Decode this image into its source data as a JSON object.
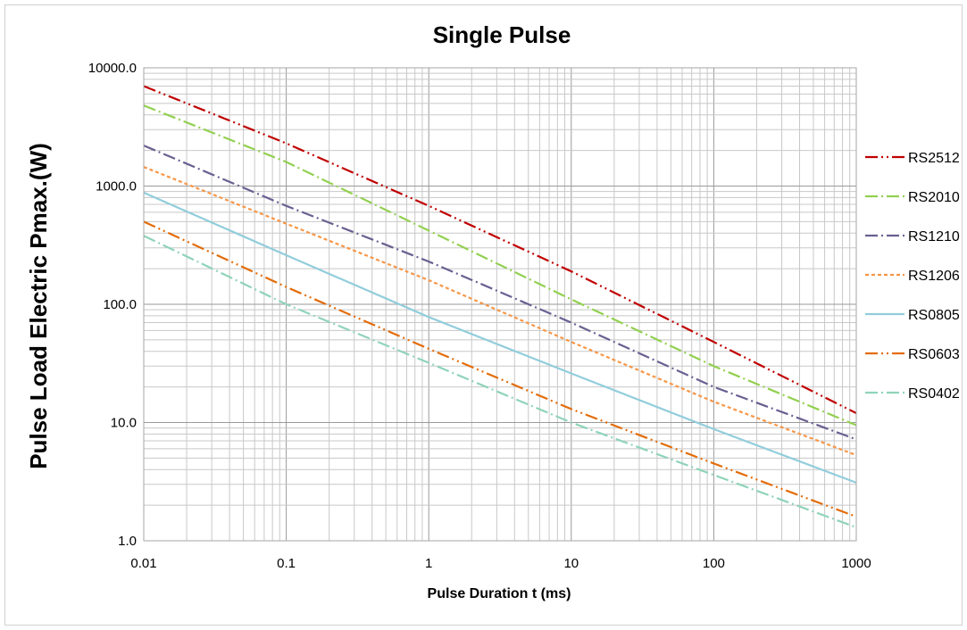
{
  "chart_data": {
    "type": "line",
    "title": "Single Pulse",
    "xlabel": "Pulse Duration t (ms)",
    "ylabel": "Pulse Load Electric Pmax.(W)",
    "xscale": "log",
    "yscale": "log",
    "xlim": [
      0.01,
      1000
    ],
    "ylim": [
      1,
      10000
    ],
    "x_ticks": [
      "0.01",
      "0.1",
      "1",
      "10",
      "100",
      "1000"
    ],
    "y_ticks": [
      "1.0",
      "10.0",
      "100.0",
      "1000.0",
      "10000.0"
    ],
    "grid": true,
    "legend_position": "right",
    "series": [
      {
        "name": "RS2512",
        "color": "#c00000",
        "dash": "dash-dot-dot",
        "x": [
          0.01,
          0.1,
          1,
          10,
          100,
          1000
        ],
        "y": [
          7000,
          2300,
          680,
          190,
          48,
          12
        ]
      },
      {
        "name": "RS2010",
        "color": "#92d050",
        "dash": "dash-dot",
        "x": [
          0.01,
          0.1,
          1,
          10,
          100,
          1000
        ],
        "y": [
          4800,
          1600,
          420,
          110,
          30,
          9.5
        ]
      },
      {
        "name": "RS1210",
        "color": "#6a5f91",
        "dash": "dash-dot",
        "x": [
          0.01,
          0.1,
          1,
          10,
          100,
          1000
        ],
        "y": [
          2200,
          680,
          230,
          70,
          20,
          7.2
        ]
      },
      {
        "name": "RS1206",
        "color": "#f79646",
        "dash": "dash",
        "x": [
          0.01,
          0.1,
          1,
          10,
          100,
          1000
        ],
        "y": [
          1450,
          480,
          160,
          48,
          15,
          5.3
        ]
      },
      {
        "name": "RS0805",
        "color": "#92cddc",
        "dash": "solid",
        "x": [
          0.01,
          0.1,
          1,
          10,
          100,
          1000
        ],
        "y": [
          880,
          260,
          78,
          26,
          8.8,
          3.1
        ]
      },
      {
        "name": "RS0603",
        "color": "#e36c09",
        "dash": "dash-dot-dot",
        "x": [
          0.01,
          0.1,
          1,
          10,
          100,
          1000
        ],
        "y": [
          500,
          140,
          42,
          13,
          4.5,
          1.6
        ]
      },
      {
        "name": "RS0402",
        "color": "#8fd3b9",
        "dash": "dash-dot",
        "x": [
          0.01,
          0.1,
          1,
          10,
          100,
          1000
        ],
        "y": [
          380,
          100,
          32,
          10,
          3.6,
          1.3
        ]
      }
    ]
  }
}
